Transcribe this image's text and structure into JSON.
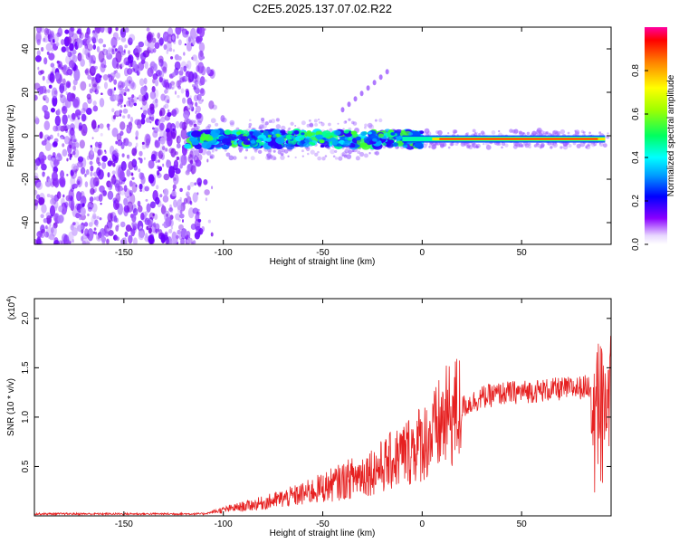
{
  "title": "C2E5.2025.137.07.02.R22",
  "chart_data": [
    {
      "type": "heatmap",
      "xlabel": "Height of straight line (km)",
      "ylabel": "Frequency (Hz)",
      "xlim": [
        -195,
        95
      ],
      "ylim": [
        -50,
        50
      ],
      "x_ticks": [
        -150,
        -100,
        -50,
        0,
        50
      ],
      "y_ticks": [
        -40,
        -20,
        0,
        20,
        40
      ],
      "x_tick_labels": [
        "-150",
        "-100",
        "-50",
        "0",
        "50"
      ],
      "y_tick_labels": [
        "-40",
        "-20",
        "0",
        "20",
        "40"
      ],
      "colorbar": {
        "label": "Normalized spectral amplitude",
        "range": [
          0,
          1
        ],
        "ticks": [
          0.0,
          0.2,
          0.4,
          0.6,
          0.8
        ],
        "tick_labels": [
          "0.0",
          "0.2",
          "0.4",
          "0.6",
          "0.8"
        ]
      },
      "features": {
        "noise_region_x": [
          -195,
          -110
        ],
        "signal_band_center_hz": -1.5,
        "signal_start_km": -118,
        "strong_line_x": [
          5,
          92
        ]
      }
    },
    {
      "type": "line",
      "xlabel": "Height of straight line (km)",
      "ylabel": "SNR (10 * v/v)",
      "multiplier": "(x10",
      "multiplier_exp": "4",
      "multiplier_close": ")",
      "xlim": [
        -195,
        95
      ],
      "ylim": [
        0,
        2.2
      ],
      "x_ticks": [
        -150,
        -100,
        -50,
        0,
        50
      ],
      "y_ticks": [
        0.5,
        1.0,
        1.5,
        2.0
      ],
      "x_tick_labels": [
        "-150",
        "-100",
        "-50",
        "0",
        "50"
      ],
      "y_tick_labels": [
        "0.5",
        "1.0",
        "1.5",
        "2.0"
      ],
      "series_color": "#e62020",
      "trend": {
        "x": [
          -195,
          -110,
          -100,
          -80,
          -60,
          -40,
          -20,
          -10,
          0,
          5,
          10,
          20,
          30,
          40,
          60,
          80,
          85,
          88,
          90,
          92,
          95
        ],
        "y": [
          0.02,
          0.02,
          0.06,
          0.13,
          0.22,
          0.35,
          0.5,
          0.62,
          0.75,
          0.8,
          0.95,
          1.1,
          1.2,
          1.24,
          1.27,
          1.3,
          1.32,
          1.3,
          1.1,
          1.2,
          1.28
        ]
      }
    }
  ]
}
